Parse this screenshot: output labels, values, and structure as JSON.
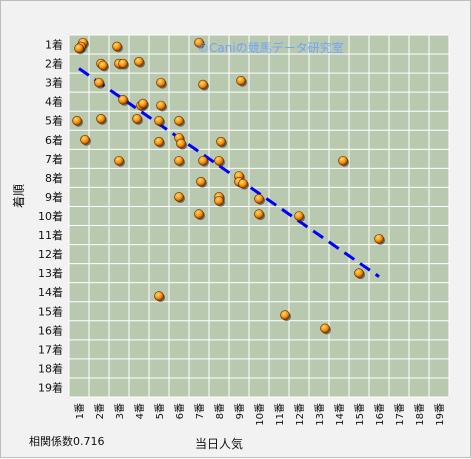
{
  "chart_data": {
    "type": "scatter",
    "title": "",
    "watermark": "©Caniの競馬データ研究室",
    "xlabel": "当日人気",
    "ylabel": "着順",
    "x_tick_labels": [
      "1番",
      "2番",
      "3番",
      "4番",
      "5番",
      "6番",
      "7番",
      "8番",
      "9番",
      "10番",
      "11番",
      "12番",
      "13番",
      "14番",
      "15番",
      "16番",
      "17番",
      "18番",
      "19番"
    ],
    "y_tick_labels": [
      "1着",
      "2着",
      "3着",
      "4着",
      "5着",
      "6着",
      "7着",
      "8着",
      "9着",
      "10着",
      "11着",
      "12着",
      "13着",
      "14着",
      "15着",
      "16着",
      "17着",
      "18着",
      "19着"
    ],
    "xlim": [
      0.5,
      19.5
    ],
    "ylim": [
      0.5,
      19.5
    ],
    "y_inverted": true,
    "grid": true,
    "correlation_label": "相関係数0.716",
    "trendline": {
      "x": [
        1,
        16
      ],
      "y": [
        2.26,
        13.18
      ],
      "color": "#0000ff",
      "style": "dashed"
    },
    "colors": {
      "plot_bg": "#b9c9b0",
      "grid": "#ffffff",
      "marker": "#ff8c00",
      "marker_outline": "#5a2a00"
    },
    "points": [
      {
        "x": 1.2,
        "y": 0.9
      },
      {
        "x": 1.1,
        "y": 1.1
      },
      {
        "x": 1.0,
        "y": 1.2
      },
      {
        "x": 1.3,
        "y": 6.0
      },
      {
        "x": 0.9,
        "y": 5.0
      },
      {
        "x": 2.1,
        "y": 2.0
      },
      {
        "x": 2.2,
        "y": 2.1
      },
      {
        "x": 2.0,
        "y": 3.0
      },
      {
        "x": 2.1,
        "y": 4.9
      },
      {
        "x": 2.9,
        "y": 1.1
      },
      {
        "x": 3.0,
        "y": 2.0
      },
      {
        "x": 3.2,
        "y": 2.0
      },
      {
        "x": 3.2,
        "y": 3.9
      },
      {
        "x": 3.0,
        "y": 7.1
      },
      {
        "x": 4.0,
        "y": 1.9
      },
      {
        "x": 4.1,
        "y": 4.2
      },
      {
        "x": 4.2,
        "y": 4.1
      },
      {
        "x": 3.9,
        "y": 4.9
      },
      {
        "x": 5.1,
        "y": 3.0
      },
      {
        "x": 5.1,
        "y": 4.2
      },
      {
        "x": 5.0,
        "y": 5.0
      },
      {
        "x": 5.0,
        "y": 6.1
      },
      {
        "x": 5.0,
        "y": 14.2
      },
      {
        "x": 6.0,
        "y": 5.0
      },
      {
        "x": 6.0,
        "y": 5.9
      },
      {
        "x": 6.1,
        "y": 6.2
      },
      {
        "x": 6.0,
        "y": 7.1
      },
      {
        "x": 6.0,
        "y": 9.0
      },
      {
        "x": 7.0,
        "y": 0.9
      },
      {
        "x": 7.2,
        "y": 3.1
      },
      {
        "x": 7.2,
        "y": 7.1
      },
      {
        "x": 7.1,
        "y": 8.2
      },
      {
        "x": 7.0,
        "y": 9.9
      },
      {
        "x": 8.1,
        "y": 6.1
      },
      {
        "x": 8.0,
        "y": 7.1
      },
      {
        "x": 8.0,
        "y": 9.0
      },
      {
        "x": 8.0,
        "y": 9.2
      },
      {
        "x": 9.1,
        "y": 2.9
      },
      {
        "x": 9.0,
        "y": 7.9
      },
      {
        "x": 9.0,
        "y": 8.2
      },
      {
        "x": 9.2,
        "y": 8.3
      },
      {
        "x": 10.0,
        "y": 9.1
      },
      {
        "x": 10.0,
        "y": 9.9
      },
      {
        "x": 11.3,
        "y": 15.2
      },
      {
        "x": 12.0,
        "y": 10.0
      },
      {
        "x": 13.3,
        "y": 15.9
      },
      {
        "x": 14.2,
        "y": 7.1
      },
      {
        "x": 15.0,
        "y": 13.0
      },
      {
        "x": 16.0,
        "y": 11.2
      }
    ]
  }
}
